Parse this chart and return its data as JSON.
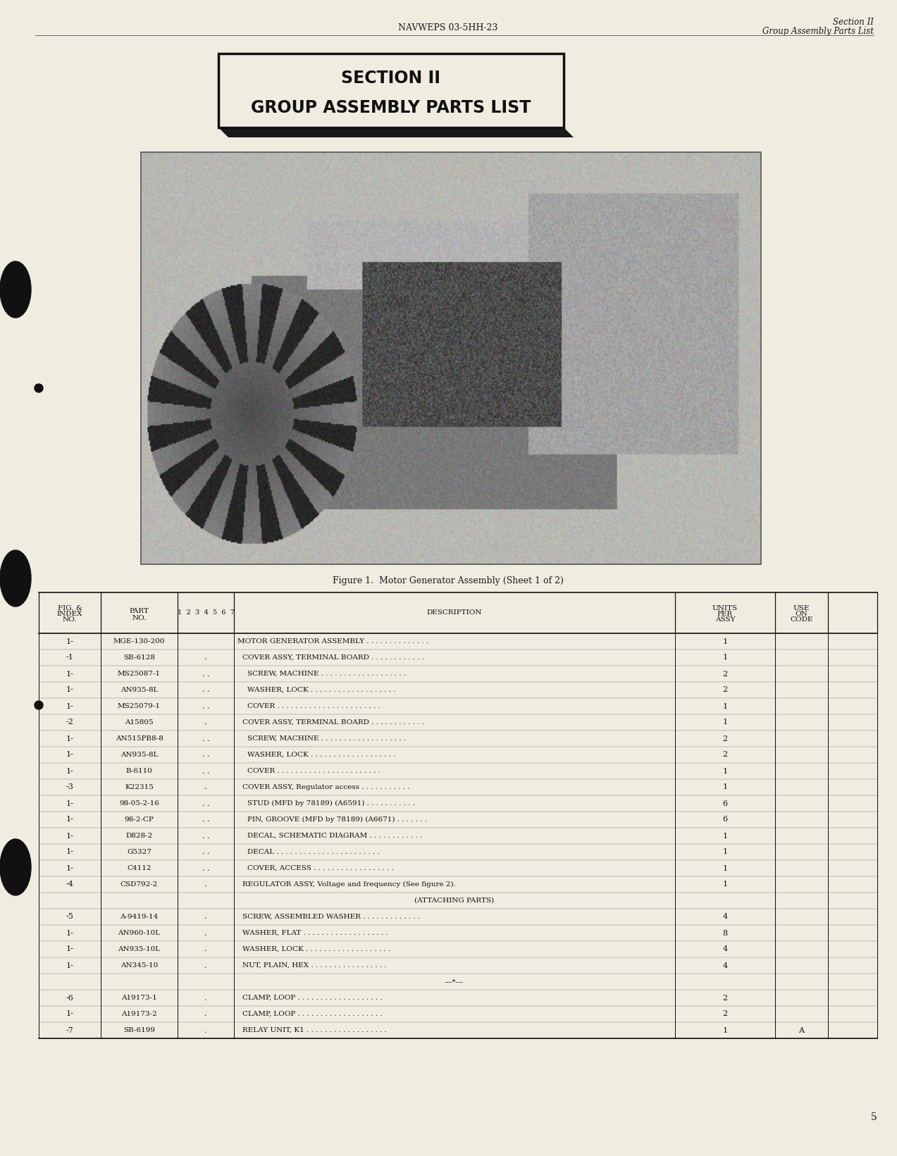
{
  "page_bg": "#f0ece0",
  "header_center": "NAVWEPS 03-5HH-23",
  "header_right_line1": "Section II",
  "header_right_line2": "Group Assembly Parts List",
  "section_title_line1": "SECTION II",
  "section_title_line2": "GROUP ASSEMBLY PARTS LIST",
  "figure_caption": "Figure 1.  Motor Generator Assembly (Sheet 1 of 2)",
  "table_rows": [
    [
      "1-",
      "MGE-130-200",
      "",
      "MOTOR GENERATOR ASSEMBLY . . . . . . . . . . . . . .",
      "1",
      ""
    ],
    [
      "-1",
      "SB-6128",
      ".",
      "COVER ASSY, TERMINAL BOARD . . . . . . . . . . . .",
      "1",
      ""
    ],
    [
      "1-",
      "MS25087-1",
      ". .",
      "SCREW, MACHINE . . . . . . . . . . . . . . . . . . .",
      "2",
      ""
    ],
    [
      "1-",
      "AN935-8L",
      ". .",
      "WASHER, LOCK . . . . . . . . . . . . . . . . . . .",
      "2",
      ""
    ],
    [
      "1-",
      "MS25079-1",
      ". .",
      "COVER . . . . . . . . . . . . . . . . . . . . . . .",
      "1",
      ""
    ],
    [
      "-2",
      "A15805",
      ".",
      "COVER ASSY, TERMINAL BOARD . . . . . . . . . . . .",
      "1",
      ""
    ],
    [
      "1-",
      "AN515PB8-8",
      ". .",
      "SCREW, MACHINE . . . . . . . . . . . . . . . . . . .",
      "2",
      ""
    ],
    [
      "1-",
      "AN935-8L",
      ". .",
      "WASHER, LOCK . . . . . . . . . . . . . . . . . . .",
      "2",
      ""
    ],
    [
      "1-",
      "B-6110",
      ". .",
      "COVER . . . . . . . . . . . . . . . . . . . . . . .",
      "1",
      ""
    ],
    [
      "-3",
      "K22315",
      ".",
      "COVER ASSY, Regulator access . . . . . . . . . . .",
      "1",
      ""
    ],
    [
      "1-",
      "98-05-2-16",
      ". .",
      "STUD (MFD by 78189) (A6591) . . . . . . . . . . .",
      "6",
      ""
    ],
    [
      "1-",
      "98-2-CP",
      ". .",
      "PIN, GROOVE (MFD by 78189) (A6671) . . . . . . .",
      "6",
      ""
    ],
    [
      "1-",
      "D828-2",
      ". .",
      "DECAL, SCHEMATIC DIAGRAM . . . . . . . . . . . .",
      "1",
      ""
    ],
    [
      "1-",
      "G5327",
      ". .",
      "DECAL . . . . . . . . . . . . . . . . . . . . . . .",
      "1",
      ""
    ],
    [
      "1-",
      "C4112",
      ". .",
      "COVER, ACCESS . . . . . . . . . . . . . . . . . .",
      "1",
      ""
    ],
    [
      "-4",
      "CSD792-2",
      ".",
      "REGULATOR ASSY, Voltage and frequency (See figure 2).",
      "1",
      ""
    ],
    [
      "",
      "",
      "",
      "(ATTACHING PARTS)",
      "",
      ""
    ],
    [
      "-5",
      "A-9419-14",
      ".",
      "SCREW, ASSEMBLED WASHER . . . . . . . . . . . . .",
      "4",
      ""
    ],
    [
      "1-",
      "AN960-10L",
      ".",
      "WASHER, FLAT . . . . . . . . . . . . . . . . . . .",
      "8",
      ""
    ],
    [
      "1-",
      "AN935-10L",
      ".",
      "WASHER, LOCK . . . . . . . . . . . . . . . . . . .",
      "4",
      ""
    ],
    [
      "1-",
      "AN345-10",
      ".",
      "NUT, PLAIN, HEX . . . . . . . . . . . . . . . . .",
      "4",
      ""
    ],
    [
      "",
      "",
      "",
      "---*---",
      "",
      ""
    ],
    [
      "-6",
      "A19173-1",
      ".",
      "CLAMP, LOOP . . . . . . . . . . . . . . . . . . .",
      "2",
      ""
    ],
    [
      "1-",
      "A19173-2",
      ".",
      "CLAMP, LOOP . . . . . . . . . . . . . . . . . . .",
      "2",
      ""
    ],
    [
      "-7",
      "SB-6199",
      ".",
      "RELAY UNIT, K1 . . . . . . . . . . . . . . . . . .",
      "1",
      "A"
    ]
  ],
  "page_number": "5"
}
